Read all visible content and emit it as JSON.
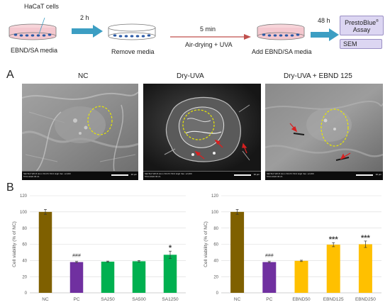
{
  "schematic": {
    "dish_label": "HaCaT cells",
    "media_label": "EBND/SA media",
    "step1_time": "2 h",
    "step1_label": "Remove media",
    "step2_time": "5 min",
    "step2_label": "Air-drying + UVA",
    "step3_label": "Add EBND/SA media",
    "step4_time": "48 h",
    "assay1_line1": "PrestoBlue",
    "assay1_sup": "®",
    "assay1_line2": "Assay",
    "assay2": "SEM",
    "colors": {
      "arrow": "#3c9ec3",
      "media": "#f4c8cf",
      "cell": "#2b5aa6",
      "box_fill": "#dcd6f2",
      "red_arrow": "#c0504d"
    }
  },
  "panel_a": {
    "letter": "A",
    "images": [
      {
        "title": "NC"
      },
      {
        "title": "Dry-UVA"
      },
      {
        "title": "Dry-UVA + EBND 125"
      }
    ],
    "scale_label": "10 μm",
    "meta_line1": "SEI 5kV WD 8.4mm SS PC 50.0 High Vac. x2,000",
    "meta_line2": "5724 2022 06 21"
  },
  "panel_b": {
    "letter": "B",
    "chart_data": [
      {
        "type": "bar",
        "ylabel": "Cell viability (% of NC)",
        "ylim": [
          0,
          120
        ],
        "yticks": [
          "0",
          "20",
          "40",
          "60",
          "80",
          "100",
          "120"
        ],
        "categories": [
          "NC",
          "PC",
          "SA250",
          "SA500",
          "SA1250"
        ],
        "values": [
          100,
          38,
          38.5,
          39,
          47
        ],
        "errors": [
          3,
          0.8,
          0.7,
          0.8,
          4.5
        ],
        "colors": [
          "#7f6000",
          "#7030a0",
          "#00b050",
          "#00b050",
          "#00b050"
        ],
        "annotations": [
          "",
          "###",
          "",
          "",
          "*"
        ]
      },
      {
        "type": "bar",
        "ylabel": "Cell viability (% of NC)",
        "ylim": [
          0,
          120
        ],
        "yticks": [
          "0",
          "20",
          "40",
          "60",
          "80",
          "100",
          "120"
        ],
        "categories": [
          "NC",
          "PC",
          "EBND50",
          "EBND125",
          "EBND250"
        ],
        "values": [
          100,
          38,
          39.5,
          59.5,
          60
        ],
        "errors": [
          3,
          0.8,
          0.8,
          2.5,
          4
        ],
        "colors": [
          "#7f6000",
          "#7030a0",
          "#ffc000",
          "#ffc000",
          "#ffc000"
        ],
        "annotations": [
          "",
          "###",
          "",
          "***",
          "***"
        ]
      }
    ]
  }
}
